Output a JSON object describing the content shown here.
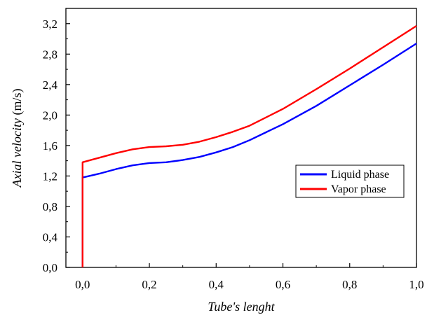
{
  "chart_data": {
    "type": "line",
    "title": "",
    "xlabel": "Tube's lenght",
    "ylabel_main": "Axial velocity",
    "ylabel_unit": " (m/s)",
    "xlim": [
      -0.05,
      1.0
    ],
    "ylim": [
      0.0,
      3.4
    ],
    "x_ticks": [
      0.0,
      0.2,
      0.4,
      0.6,
      0.8,
      1.0
    ],
    "x_tick_labels": [
      "0,0",
      "0,2",
      "0,4",
      "0,6",
      "0,8",
      "1,0"
    ],
    "y_ticks": [
      0.0,
      0.4,
      0.8,
      1.2,
      1.6,
      2.0,
      2.4,
      2.8,
      3.2
    ],
    "y_tick_labels": [
      "0,0",
      "0,4",
      "0,8",
      "1,2",
      "1,6",
      "2,0",
      "2,4",
      "2,8",
      "3,2"
    ],
    "grid": false,
    "legend_position": "center-right",
    "series": [
      {
        "name": "Liquid phase",
        "color": "#0000ff",
        "points": [
          [
            0.0,
            0.0
          ],
          [
            0.0,
            1.18
          ],
          [
            0.05,
            1.23
          ],
          [
            0.1,
            1.29
          ],
          [
            0.15,
            1.34
          ],
          [
            0.2,
            1.37
          ],
          [
            0.25,
            1.38
          ],
          [
            0.3,
            1.41
          ],
          [
            0.35,
            1.45
          ],
          [
            0.4,
            1.51
          ],
          [
            0.45,
            1.58
          ],
          [
            0.5,
            1.67
          ],
          [
            0.6,
            1.88
          ],
          [
            0.7,
            2.12
          ],
          [
            0.8,
            2.39
          ],
          [
            0.9,
            2.66
          ],
          [
            1.0,
            2.94
          ]
        ]
      },
      {
        "name": "Vapor phase",
        "color": "#ff0000",
        "points": [
          [
            0.0,
            0.0
          ],
          [
            0.0,
            1.38
          ],
          [
            0.05,
            1.44
          ],
          [
            0.1,
            1.5
          ],
          [
            0.15,
            1.55
          ],
          [
            0.2,
            1.58
          ],
          [
            0.25,
            1.59
          ],
          [
            0.3,
            1.61
          ],
          [
            0.35,
            1.65
          ],
          [
            0.4,
            1.71
          ],
          [
            0.45,
            1.78
          ],
          [
            0.5,
            1.86
          ],
          [
            0.6,
            2.08
          ],
          [
            0.7,
            2.34
          ],
          [
            0.8,
            2.61
          ],
          [
            0.9,
            2.89
          ],
          [
            1.0,
            3.17
          ]
        ]
      }
    ]
  }
}
